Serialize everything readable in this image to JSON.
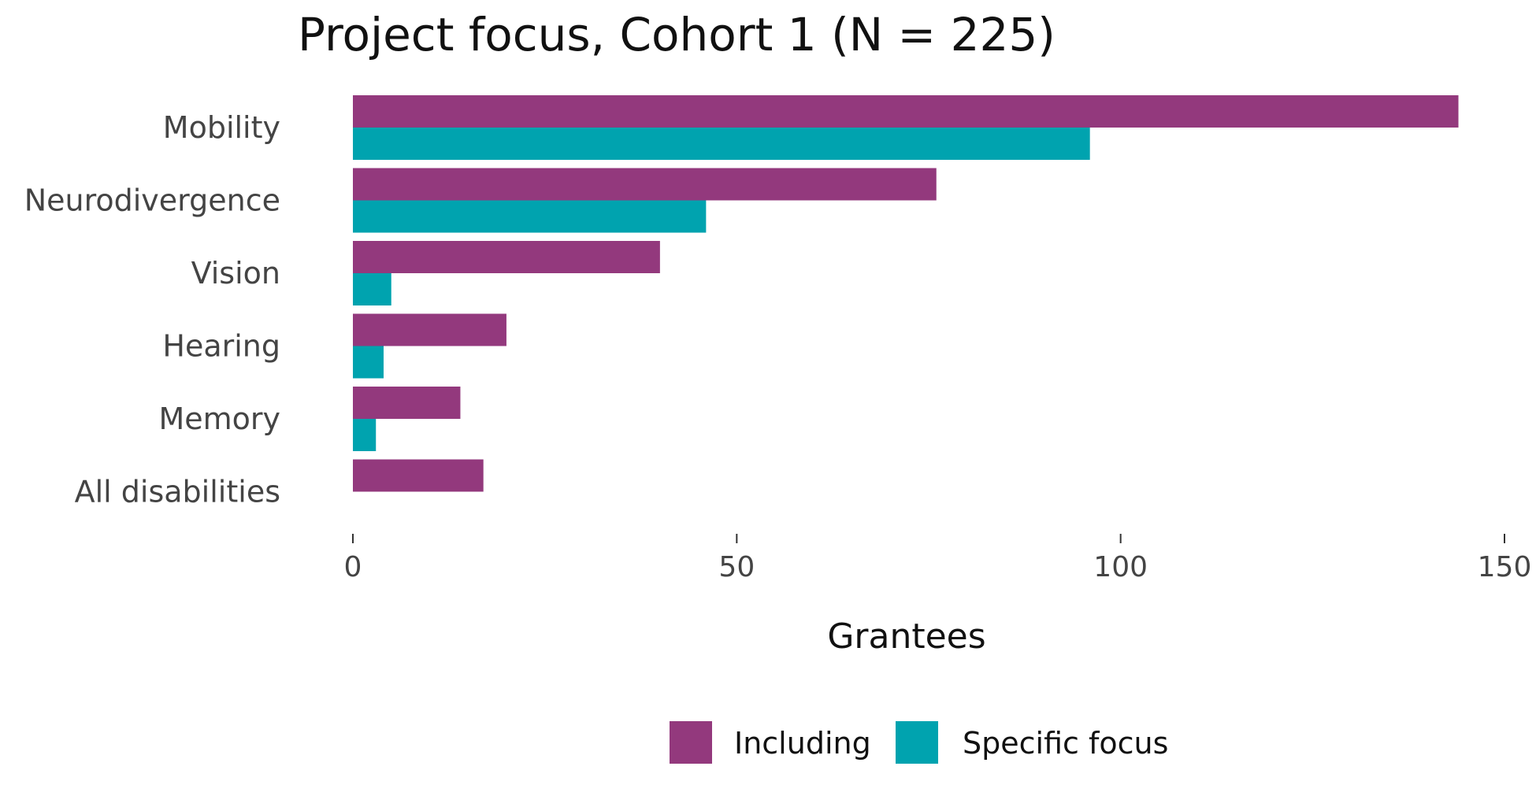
{
  "colors": {
    "including": "#93397D",
    "specific": "#00A3AF",
    "title": "#111111",
    "tick_text": "#444444",
    "axis_title": "#111111",
    "legend_text": "#111111"
  },
  "chart_data": {
    "type": "bar",
    "orientation": "horizontal",
    "title": "Project focus, Cohort 1 (N = 225)",
    "xlabel": "Grantees",
    "ylabel": "",
    "xlim": [
      0,
      150
    ],
    "xticks": [
      0,
      50,
      100,
      150
    ],
    "xtick_labels": [
      "0",
      "50",
      "100",
      "150"
    ],
    "grid": false,
    "legend_position": "bottom",
    "categories": [
      "Mobility",
      "Neurodivergence",
      "Vision",
      "Hearing",
      "Memory",
      "All disabilities"
    ],
    "series": [
      {
        "name": "Including",
        "color_key": "including",
        "values": [
          144,
          76,
          40,
          20,
          14,
          17
        ]
      },
      {
        "name": "Specific focus",
        "color_key": "specific",
        "values": [
          96,
          46,
          5,
          4,
          3,
          0
        ]
      }
    ]
  }
}
